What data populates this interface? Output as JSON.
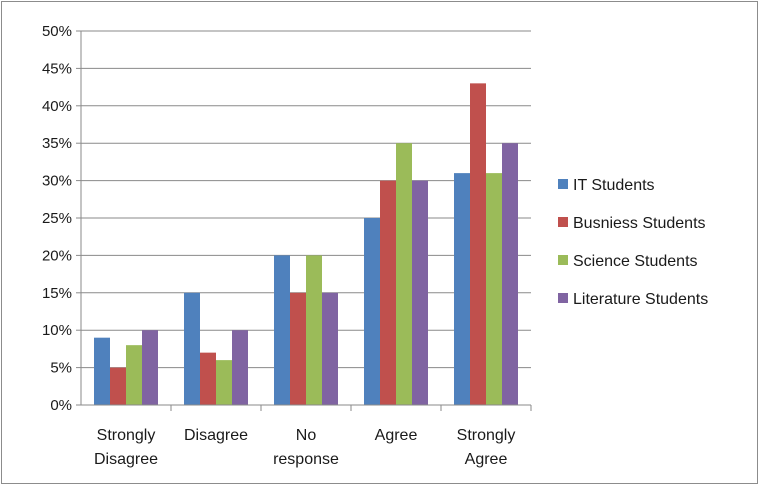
{
  "chart_data": {
    "type": "bar",
    "categories": [
      [
        "Strongly",
        "Disagree"
      ],
      [
        "Disagree"
      ],
      [
        "No",
        "response"
      ],
      [
        "Agree"
      ],
      [
        "Strongly",
        "Agree"
      ]
    ],
    "series": [
      {
        "name": "IT Students",
        "color": "#4f81bd",
        "values": [
          9,
          15,
          20,
          25,
          31
        ]
      },
      {
        "name": "Busniess Students",
        "color": "#c0504d",
        "values": [
          5,
          7,
          15,
          30,
          43
        ]
      },
      {
        "name": "Science Students",
        "color": "#9bbb59",
        "values": [
          8,
          6,
          20,
          35,
          31
        ]
      },
      {
        "name": "Literature Students",
        "color": "#8064a2",
        "values": [
          10,
          10,
          15,
          30,
          35
        ]
      }
    ],
    "ylim": [
      0,
      50
    ],
    "ytick_step": 5,
    "ytick_labels": [
      "0%",
      "5%",
      "10%",
      "15%",
      "20%",
      "25%",
      "30%",
      "35%",
      "40%",
      "45%",
      "50%"
    ],
    "grid": true,
    "legend_position": "right",
    "title": "",
    "xlabel": "",
    "ylabel": ""
  }
}
